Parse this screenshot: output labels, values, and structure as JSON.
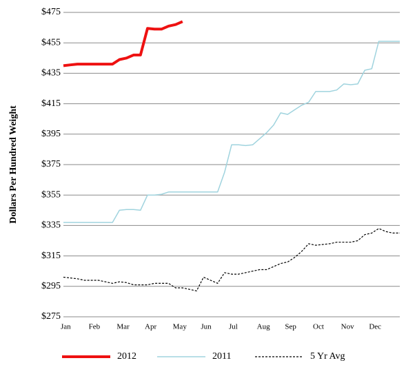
{
  "chart_data": {
    "type": "line",
    "y_label": "Dollars Per Hundred Weight",
    "x": [
      0,
      0.25,
      0.5,
      0.75,
      1,
      1.25,
      1.5,
      1.75,
      2,
      2.25,
      2.5,
      2.75,
      3,
      3.25,
      3.5,
      3.75,
      4,
      4.25,
      4.5,
      4.75,
      5,
      5.25,
      5.5,
      5.75,
      6,
      6.25,
      6.5,
      6.75,
      7,
      7.25,
      7.5,
      7.75,
      8,
      8.25,
      8.5,
      8.75,
      9,
      9.25,
      9.5,
      9.75,
      10,
      10.25,
      10.5,
      10.75,
      11,
      11.25,
      11.5,
      11.75,
      12
    ],
    "xlim": [
      0,
      12
    ],
    "xticks": [
      {
        "value": 0,
        "label": "Jan"
      },
      {
        "value": 1,
        "label": "Feb"
      },
      {
        "value": 2,
        "label": "Mar"
      },
      {
        "value": 3,
        "label": "Apr"
      },
      {
        "value": 4,
        "label": "May"
      },
      {
        "value": 5,
        "label": "Jun"
      },
      {
        "value": 6,
        "label": "Jul"
      },
      {
        "value": 7,
        "label": "Aug"
      },
      {
        "value": 8,
        "label": "Sep"
      },
      {
        "value": 9,
        "label": "Oct"
      },
      {
        "value": 10,
        "label": "Nov"
      },
      {
        "value": 11,
        "label": "Dec"
      }
    ],
    "ylim": [
      275,
      475
    ],
    "yticks": [
      {
        "value": 275,
        "label": "$275"
      },
      {
        "value": 295,
        "label": "$295"
      },
      {
        "value": 315,
        "label": "$315"
      },
      {
        "value": 335,
        "label": "$335"
      },
      {
        "value": 355,
        "label": "$355"
      },
      {
        "value": 375,
        "label": "$375"
      },
      {
        "value": 395,
        "label": "$395"
      },
      {
        "value": 415,
        "label": "$415"
      },
      {
        "value": 435,
        "label": "$435"
      },
      {
        "value": 455,
        "label": "$455"
      },
      {
        "value": 475,
        "label": "$475"
      }
    ],
    "grid": true,
    "legend": "bottom",
    "series": [
      {
        "name": "2012",
        "color": "#ee1111",
        "line_width": 4,
        "line_style": "solid",
        "values": [
          440,
          440.5,
          441,
          441,
          441,
          441,
          441,
          441,
          444,
          445,
          447,
          447,
          464.5,
          464,
          464,
          466,
          467,
          469,
          null,
          null,
          null,
          null,
          null,
          null,
          null,
          null,
          null,
          null,
          null,
          null,
          null,
          null,
          null,
          null,
          null,
          null,
          null,
          null,
          null,
          null,
          null,
          null,
          null,
          null,
          null,
          null,
          null,
          null,
          null
        ]
      },
      {
        "name": "2011",
        "color": "#9fd3de",
        "line_width": 1.5,
        "line_style": "solid",
        "values": [
          337,
          337,
          337,
          337,
          337,
          337,
          337,
          337,
          345,
          345.5,
          345.5,
          345,
          355,
          355,
          355.5,
          357,
          357,
          357,
          357,
          357,
          357,
          357,
          357,
          370,
          388,
          388,
          387.5,
          388,
          392,
          396,
          401,
          409,
          408,
          411,
          414,
          416,
          423,
          423,
          423,
          424,
          428,
          427.5,
          428,
          437,
          438,
          456,
          456,
          456,
          456
        ]
      },
      {
        "name": "5 Yr Avg",
        "color": "#000000",
        "line_width": 1.2,
        "line_style": "dashed",
        "values": [
          301,
          300.5,
          300,
          299,
          299,
          299,
          298,
          297,
          298,
          297.5,
          296,
          296,
          296,
          297,
          297,
          297,
          294,
          294,
          293,
          292,
          301,
          299,
          297,
          304,
          303,
          303,
          304,
          305,
          306,
          306,
          308,
          310,
          311,
          314,
          318,
          323,
          322,
          322.5,
          323,
          324,
          324,
          324,
          325,
          329,
          330,
          333,
          331,
          330,
          330
        ]
      }
    ]
  }
}
